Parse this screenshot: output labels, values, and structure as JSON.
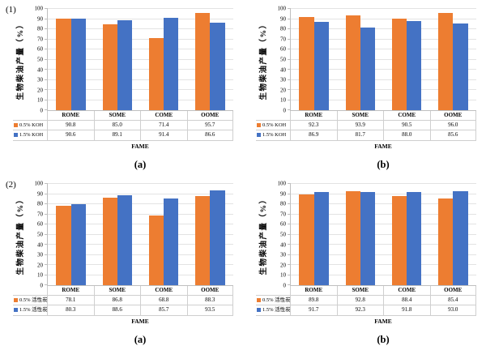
{
  "figure": {
    "background": "#ffffff",
    "colors": {
      "series1": "#ED7D31",
      "series2": "#4472C4",
      "gridline": "#E3E3E3",
      "axis": "#BFBFBF",
      "table_border": "#CFCFCF"
    },
    "yticks": [
      0,
      10,
      20,
      30,
      40,
      50,
      60,
      70,
      80,
      90,
      100
    ]
  },
  "chart_data": [
    {
      "type": "bar",
      "group_label": "(1)",
      "caption": "(a)",
      "title": "",
      "xlabel": "FAME",
      "ylabel": "生物柴油产量（%）",
      "ylim": [
        0,
        100
      ],
      "grid": true,
      "legend_position": "data-table-left",
      "categories": [
        "ROME",
        "SOME",
        "COME",
        "OOME"
      ],
      "series": [
        {
          "name": "0.5% KOH",
          "color": "#ED7D31",
          "values": [
            90.8,
            85.0,
            71.4,
            95.7
          ]
        },
        {
          "name": "1.5% KOH",
          "color": "#4472C4",
          "values": [
            90.6,
            89.1,
            91.4,
            86.6
          ]
        }
      ]
    },
    {
      "type": "bar",
      "group_label": "",
      "caption": "(b)",
      "title": "",
      "xlabel": "FAME",
      "ylabel": "生物柴油产量（%）",
      "ylim": [
        0,
        100
      ],
      "grid": true,
      "legend_position": "data-table-left",
      "categories": [
        "ROME",
        "SOME",
        "COME",
        "OOME"
      ],
      "series": [
        {
          "name": "0.5% KOH",
          "color": "#ED7D31",
          "values": [
            92.3,
            93.9,
            90.5,
            96.0
          ]
        },
        {
          "name": "1.5% KOH",
          "color": "#4472C4",
          "values": [
            86.9,
            81.7,
            88.0,
            85.6
          ]
        }
      ]
    },
    {
      "type": "bar",
      "group_label": "(2)",
      "caption": "(a)",
      "title": "",
      "xlabel": "FAME",
      "ylabel": "生物柴油产量（%）",
      "ylim": [
        0,
        100
      ],
      "grid": true,
      "legend_position": "data-table-left",
      "categories": [
        "ROME",
        "SOME",
        "COME",
        "OOME"
      ],
      "series": [
        {
          "name": "0.5% 活性炭",
          "color": "#ED7D31",
          "values": [
            78.1,
            86.8,
            68.8,
            88.3
          ]
        },
        {
          "name": "1.5% 活性炭",
          "color": "#4472C4",
          "values": [
            80.3,
            88.6,
            85.7,
            93.5
          ]
        }
      ]
    },
    {
      "type": "bar",
      "group_label": "",
      "caption": "(b)",
      "title": "",
      "xlabel": "FAME",
      "ylabel": "生物柴油产量（%）",
      "ylim": [
        0,
        100
      ],
      "grid": true,
      "legend_position": "data-table-left",
      "categories": [
        "ROME",
        "SOME",
        "COME",
        "OOME"
      ],
      "series": [
        {
          "name": "0.5% 活性炭",
          "color": "#ED7D31",
          "values": [
            89.8,
            92.8,
            88.4,
            85.4
          ]
        },
        {
          "name": "1.5% 活性炭",
          "color": "#4472C4",
          "values": [
            91.7,
            92.3,
            91.8,
            93.0
          ]
        }
      ]
    }
  ]
}
